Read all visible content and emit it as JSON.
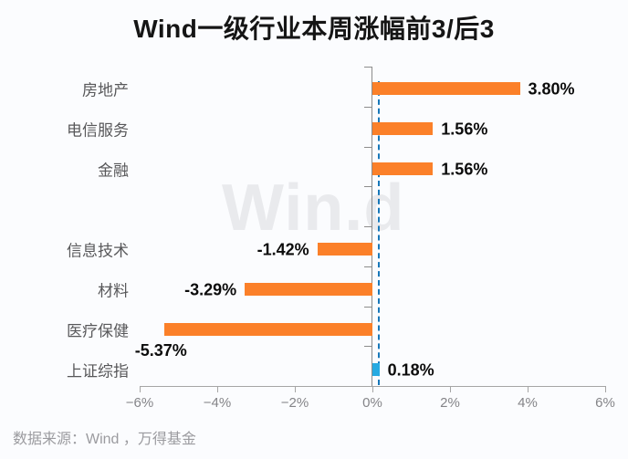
{
  "title": "Wind一级行业本周涨幅前3/后3",
  "watermark": "Win.d",
  "footer": {
    "source_text": "数据来源：Wind ，万得基金"
  },
  "colors": {
    "industry_bar": "#fb8029",
    "index_bar": "#27aae1",
    "reference_line": "#1878b9",
    "axis_line": "#8c8c8c",
    "value_label": "#0c0c0c",
    "category_label": "#58585a",
    "tick_label": "#848488",
    "watermark": "#e9eaed",
    "background": "#fbfcfe"
  },
  "chart_data": {
    "type": "bar",
    "orientation": "horizontal",
    "title": "Wind一级行业本周涨幅前3/后3",
    "xlim": [
      -6,
      6
    ],
    "grid": "off",
    "legend": "none",
    "reference_line_value": 0.18,
    "rows": [
      {
        "label": "房地产",
        "value": 3.8,
        "display": "3.80%",
        "kind": "industry"
      },
      {
        "label": "电信服务",
        "value": 1.56,
        "display": "1.56%",
        "kind": "industry"
      },
      {
        "label": "金融",
        "value": 1.56,
        "display": "1.56%",
        "kind": "industry"
      },
      {
        "kind": "spacer"
      },
      {
        "label": "信息技术",
        "value": -1.42,
        "display": "-1.42%",
        "kind": "industry"
      },
      {
        "label": "材料",
        "value": -3.29,
        "display": "-3.29%",
        "kind": "industry"
      },
      {
        "label": "医疗保健",
        "value": -5.37,
        "display": "-5.37%",
        "kind": "industry",
        "label_below": true
      },
      {
        "label": "上证综指",
        "value": 0.18,
        "display": "0.18%",
        "kind": "index"
      }
    ],
    "x_ticks": [
      {
        "value": -6,
        "label": "−6%"
      },
      {
        "value": -4,
        "label": "−4%"
      },
      {
        "value": -2,
        "label": "−2%"
      },
      {
        "value": 0,
        "label": "0%"
      },
      {
        "value": 2,
        "label": "2%"
      },
      {
        "value": 4,
        "label": "4%"
      },
      {
        "value": 6,
        "label": "6%"
      }
    ]
  }
}
